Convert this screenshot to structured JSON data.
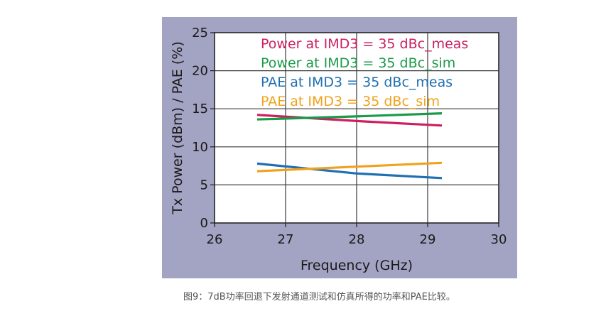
{
  "chart_data": {
    "type": "line",
    "title": "",
    "xlabel": "Frequency (GHz)",
    "ylabel": "Tx Power (dBm) / PAE (%)",
    "xlim": [
      26,
      30
    ],
    "ylim": [
      0,
      25
    ],
    "xticks": [
      26,
      27,
      28,
      29,
      30
    ],
    "yticks": [
      0,
      5,
      10,
      15,
      20,
      25
    ],
    "grid": true,
    "legend_position": "top-right",
    "series": [
      {
        "name": "Power at IMD3 = 35 dBc_meas",
        "color": "#cc1f5e",
        "x": [
          26.6,
          28.0,
          29.2
        ],
        "y": [
          14.2,
          13.4,
          12.8
        ]
      },
      {
        "name": "Power at IMD3 = 35 dBc_sim",
        "color": "#1a9a4a",
        "x": [
          26.6,
          28.0,
          29.2
        ],
        "y": [
          13.6,
          14.0,
          14.4
        ]
      },
      {
        "name": "PAE at IMD3 = 35 dBc_meas",
        "color": "#1f6fb2",
        "x": [
          26.6,
          28.0,
          29.2
        ],
        "y": [
          7.8,
          6.5,
          5.9
        ]
      },
      {
        "name": "PAE at IMD3 = 35 dBc_sim",
        "color": "#f0a21c",
        "x": [
          26.6,
          28.0,
          29.2
        ],
        "y": [
          6.8,
          7.4,
          7.9
        ]
      }
    ]
  },
  "caption": "图9：7dB功率回退下发射通道测试和仿真所得的功率和PAE比较。"
}
